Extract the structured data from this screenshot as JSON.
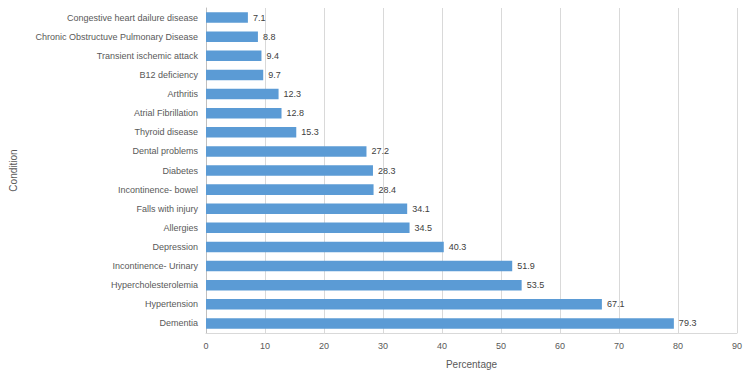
{
  "chart_data": {
    "type": "bar",
    "orientation": "horizontal",
    "x_label": "Percentage",
    "y_label": "Condition",
    "categories": [
      "Dementia",
      "Hypertension",
      "Hypercholesterolemia",
      "Incontinence- Urinary",
      "Depression",
      "Allergies",
      "Falls with injury",
      "Incontinence- bowel",
      "Diabetes",
      "Dental problems",
      "Thyroid disease",
      "Atrial Fibrillation",
      "Arthritis",
      "B12 deficiency",
      "Transient ischemic attack",
      "Chronic Obstructuve Pulmonary Disease",
      "Congestive heart dailure disease"
    ],
    "values": [
      79.3,
      67.1,
      53.5,
      51.9,
      40.3,
      34.5,
      34.1,
      28.4,
      28.3,
      27.2,
      15.3,
      12.8,
      12.3,
      9.7,
      9.4,
      8.8,
      7.1
    ],
    "color": "#5b9bd5",
    "xlim": [
      0,
      90
    ],
    "xticks": [
      0,
      10,
      20,
      30,
      40,
      50,
      60,
      70,
      80,
      90
    ],
    "grid": true,
    "data_labels": true
  }
}
